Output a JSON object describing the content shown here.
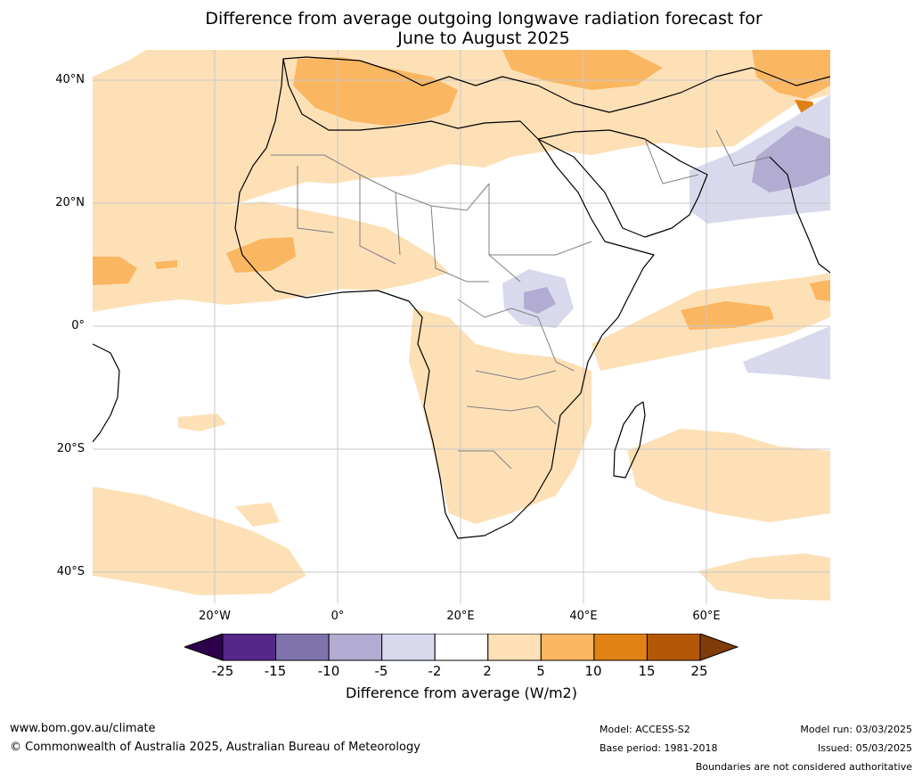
{
  "title_line1": "Difference from average outgoing longwave radiation forecast for",
  "title_line2": "June to August 2025",
  "map": {
    "lat_labels": [
      "40°N",
      "20°N",
      "0°",
      "20°S",
      "40°S"
    ],
    "lon_labels": [
      "20°W",
      "0°",
      "20°E",
      "40°E",
      "60°E"
    ],
    "colors": {
      "ocean_land_neutral": "#ffffff",
      "orange_light": "#fde0b6",
      "orange_mid": "#fbb661",
      "orange_dark": "#e07f14",
      "brown": "#b35806",
      "purple_pale": "#d8d9ec",
      "purple_light": "#b2abd2",
      "purple_mid": "#8073ac",
      "purple_dark": "#542788",
      "purple_darkest": "#2d004b",
      "brown_darkest": "#7f3b08",
      "coastline": "#000000",
      "boundary": "#808080",
      "grid": "#c8c8c8"
    }
  },
  "legend": {
    "ticks": [
      "-25",
      "-15",
      "-10",
      "-5",
      "-2",
      "2",
      "5",
      "10",
      "15",
      "25"
    ],
    "bins": [
      "#542788",
      "#8073ac",
      "#b2abd2",
      "#d8d9ec",
      "#ffffff",
      "#fde0b6",
      "#fbb661",
      "#e08214",
      "#b35806"
    ],
    "extend_low": "#2d004b",
    "extend_high": "#7f3b08",
    "label": "Difference from average (W/m2)"
  },
  "footer": {
    "url": "www.bom.gov.au/climate",
    "copyright": "© Commonwealth of Australia 2025, Australian Bureau of Meteorology",
    "model": "Model: ACCESS-S2",
    "base_period": "Base period: 1981-2018",
    "model_run": "Model run: 03/03/2025",
    "issued": "Issued: 05/03/2025",
    "disclaimer": "Boundaries are not considered authoritative"
  }
}
